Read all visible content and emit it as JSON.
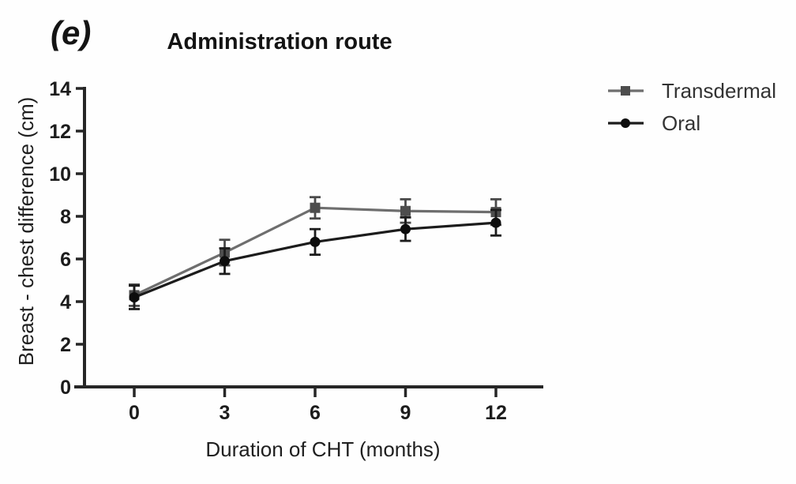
{
  "chart_data": {
    "type": "line",
    "panel_label": "(e)",
    "title": "Administration route",
    "xlabel": "Duration of CHT (months)",
    "ylabel": "Breast - chest difference (cm)",
    "x": [
      0,
      3,
      6,
      9,
      12
    ],
    "xticks": [
      "0",
      "3",
      "6",
      "9",
      "12"
    ],
    "yticks": [
      "0",
      "2",
      "4",
      "6",
      "8",
      "10",
      "12",
      "14"
    ],
    "ytick_values": [
      0,
      2,
      4,
      6,
      8,
      10,
      12,
      14
    ],
    "xlim": [
      0,
      12
    ],
    "ylim": [
      0,
      14
    ],
    "grid": false,
    "legend_position": "right",
    "error_bars": true,
    "axis_color": "#262626",
    "series": [
      {
        "name": "Transdermal",
        "marker": "square",
        "line_color": "#6e6e6e",
        "marker_color": "#4d4d4d",
        "error_color": "#4a4a4a",
        "values": [
          4.3,
          6.3,
          8.4,
          8.25,
          8.2
        ],
        "errors": [
          0.5,
          0.6,
          0.5,
          0.55,
          0.6
        ]
      },
      {
        "name": "Oral",
        "marker": "circle",
        "line_color": "#1c1c1c",
        "marker_color": "#0d0d0d",
        "error_color": "#1c1c1c",
        "values": [
          4.2,
          5.9,
          6.8,
          7.4,
          7.7
        ],
        "errors": [
          0.55,
          0.6,
          0.6,
          0.55,
          0.6
        ]
      }
    ]
  }
}
